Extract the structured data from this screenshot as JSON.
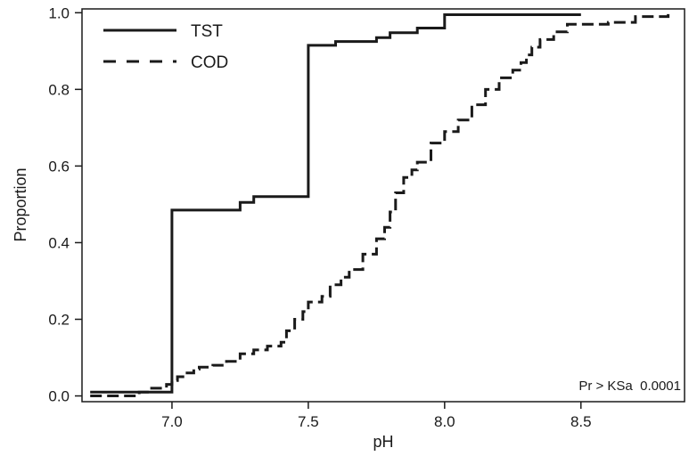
{
  "chart_data": {
    "type": "line",
    "step": true,
    "xlabel": "pH",
    "ylabel": "Proportion",
    "xlim": [
      6.67,
      8.88
    ],
    "ylim": [
      -0.015,
      1.01
    ],
    "x_ticks": [
      7.0,
      7.5,
      8.0,
      8.5
    ],
    "x_tick_labels": [
      "7.0",
      "7.5",
      "8.0",
      "8.5"
    ],
    "y_ticks": [
      0.0,
      0.2,
      0.4,
      0.6,
      0.8,
      1.0
    ],
    "y_tick_labels": [
      "0.0",
      "0.2",
      "0.4",
      "0.6",
      "0.8",
      "1.0"
    ],
    "grid": false,
    "legend_position": "top-left",
    "annotation": "Pr > KSa  0.0001",
    "series": [
      {
        "name": "TST",
        "style": "solid",
        "color": "#1a1a1a",
        "x": [
          6.7,
          7.0,
          7.0,
          7.25,
          7.25,
          7.3,
          7.3,
          7.5,
          7.5,
          7.6,
          7.6,
          7.75,
          7.75,
          7.8,
          7.8,
          7.9,
          7.9,
          8.0,
          8.0,
          8.5
        ],
        "y": [
          0.01,
          0.01,
          0.485,
          0.485,
          0.505,
          0.505,
          0.52,
          0.52,
          0.915,
          0.915,
          0.925,
          0.925,
          0.935,
          0.935,
          0.948,
          0.948,
          0.96,
          0.96,
          0.995,
          0.995
        ]
      },
      {
        "name": "COD",
        "style": "dashed",
        "color": "#1a1a1a",
        "x": [
          6.7,
          6.85,
          6.88,
          6.92,
          6.98,
          7.0,
          7.02,
          7.05,
          7.08,
          7.1,
          7.15,
          7.2,
          7.25,
          7.3,
          7.35,
          7.4,
          7.42,
          7.45,
          7.48,
          7.5,
          7.55,
          7.58,
          7.62,
          7.65,
          7.7,
          7.75,
          7.78,
          7.8,
          7.82,
          7.85,
          7.88,
          7.9,
          7.95,
          8.0,
          8.05,
          8.1,
          8.15,
          8.2,
          8.25,
          8.28,
          8.3,
          8.32,
          8.35,
          8.4,
          8.45,
          8.5,
          8.6,
          8.7,
          8.75,
          8.82
        ],
        "y": [
          0.0,
          0.0,
          0.01,
          0.02,
          0.03,
          0.04,
          0.05,
          0.06,
          0.07,
          0.075,
          0.08,
          0.09,
          0.11,
          0.12,
          0.13,
          0.14,
          0.17,
          0.2,
          0.22,
          0.245,
          0.26,
          0.29,
          0.31,
          0.33,
          0.37,
          0.41,
          0.44,
          0.48,
          0.53,
          0.57,
          0.59,
          0.61,
          0.66,
          0.69,
          0.72,
          0.76,
          0.8,
          0.83,
          0.85,
          0.87,
          0.89,
          0.91,
          0.93,
          0.95,
          0.97,
          0.97,
          0.975,
          0.99,
          0.99,
          1.0
        ]
      }
    ]
  }
}
